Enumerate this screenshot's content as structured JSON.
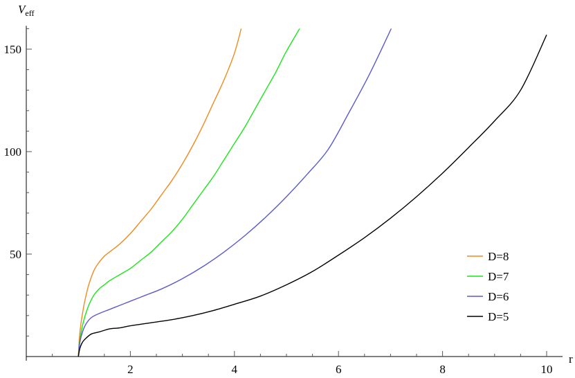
{
  "chart_data": {
    "type": "line",
    "xlabel": "r",
    "ylabel_main": "V",
    "ylabel_sub": "eff",
    "xlim": [
      0,
      10.2
    ],
    "ylim": [
      0,
      160
    ],
    "x_major_ticks": [
      2,
      4,
      6,
      8,
      10
    ],
    "x_tick_labels": [
      "2",
      "4",
      "6",
      "8",
      "10"
    ],
    "y_major_ticks": [
      50,
      100,
      150
    ],
    "y_tick_labels": [
      "50",
      "100",
      "150"
    ],
    "legend_position": "bottom-right",
    "series": [
      {
        "name": "D=8",
        "color": "#F08A1E",
        "x": [
          1.0,
          1.02,
          1.05,
          1.1,
          1.15,
          1.2,
          1.3,
          1.4,
          1.5,
          1.6,
          1.8,
          2.0,
          2.2,
          2.4,
          2.6,
          2.8,
          3.0,
          3.2,
          3.4,
          3.6,
          3.8,
          4.0,
          4.15
        ],
        "y": [
          0,
          9,
          16,
          24,
          30,
          35,
          42,
          46,
          49,
          51,
          55,
          60,
          66,
          72,
          79,
          86,
          94,
          103,
          113,
          124,
          135,
          148,
          162
        ]
      },
      {
        "name": "D=7",
        "color": "#19E619",
        "x": [
          1.0,
          1.03,
          1.07,
          1.12,
          1.2,
          1.3,
          1.4,
          1.5,
          1.6,
          1.8,
          2.0,
          2.2,
          2.4,
          2.6,
          2.8,
          3.0,
          3.2,
          3.4,
          3.6,
          3.8,
          4.0,
          4.2,
          4.4,
          4.6,
          4.8,
          5.0,
          5.3
        ],
        "y": [
          0,
          8,
          14,
          19,
          25,
          30,
          33,
          35,
          37,
          40,
          43,
          47,
          51,
          56,
          61,
          67,
          74,
          81,
          88,
          96,
          104,
          112,
          121,
          130,
          139,
          149,
          162
        ]
      },
      {
        "name": "D=6",
        "color": "#5A5ACD",
        "x": [
          1.0,
          1.03,
          1.08,
          1.15,
          1.25,
          1.4,
          1.6,
          1.8,
          2.0,
          2.3,
          2.6,
          3.0,
          3.4,
          3.8,
          4.2,
          4.6,
          5.0,
          5.4,
          5.8,
          6.2,
          6.6,
          7.05
        ],
        "y": [
          0,
          7,
          12,
          16,
          19,
          21,
          23,
          25,
          27,
          30,
          33,
          38,
          44,
          51,
          59,
          68,
          78,
          89,
          101,
          119,
          138,
          162
        ]
      },
      {
        "name": "D=5",
        "color": "#000000",
        "x": [
          1.0,
          1.03,
          1.08,
          1.15,
          1.25,
          1.4,
          1.6,
          1.8,
          2.0,
          2.4,
          2.8,
          3.2,
          3.6,
          4.0,
          4.5,
          5.0,
          5.5,
          6.0,
          6.5,
          7.0,
          7.5,
          8.0,
          8.5,
          9.0,
          9.5,
          10.0
        ],
        "y": [
          0,
          4,
          7,
          9,
          11,
          12,
          13.5,
          14,
          15,
          16.5,
          18,
          20,
          22.5,
          25.5,
          29.5,
          35,
          41.5,
          49.5,
          58,
          67.5,
          78,
          89.5,
          102,
          115,
          130,
          157
        ]
      }
    ]
  }
}
